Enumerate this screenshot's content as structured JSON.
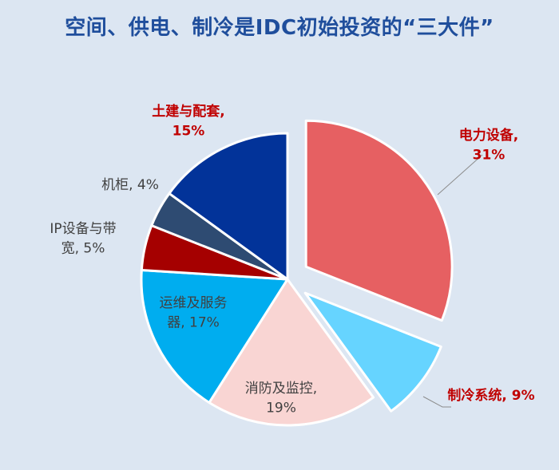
{
  "chart_data": {
    "type": "pie",
    "title": "空间、供电、制冷是IDC初始投资的“三大件”",
    "slices": [
      {
        "label": "电力设备,",
        "value": 31,
        "display": "31%",
        "color": "#e66062",
        "exploded": true,
        "label_color": "#c00000",
        "label_bold": true
      },
      {
        "label": "制冷系统,",
        "value": 9,
        "display": "9%",
        "color": "#66d4ff",
        "exploded": true,
        "label_color": "#c00000",
        "label_bold": true
      },
      {
        "label": "消防及监控,",
        "value": 19,
        "display": "19%",
        "color": "#f9d5d3",
        "exploded": false,
        "label_color": "#404040",
        "label_bold": false
      },
      {
        "label": "运维及服务器,",
        "value": 17,
        "display": "17%",
        "color": "#00adef",
        "exploded": false,
        "label_color": "#404040",
        "label_bold": false
      },
      {
        "label": "IP设备与带宽,",
        "value": 5,
        "display": "5%",
        "color": "#a50000",
        "exploded": false,
        "label_color": "#404040",
        "label_bold": false
      },
      {
        "label": "机柜,",
        "value": 4,
        "display": "4%",
        "color": "#2e4b72",
        "exploded": false,
        "label_color": "#404040",
        "label_bold": false
      },
      {
        "label": "土建与配套,",
        "value": 15,
        "display": "15%",
        "color": "#023399",
        "exploded": false,
        "label_color": "#c00000",
        "label_bold": true
      }
    ]
  }
}
